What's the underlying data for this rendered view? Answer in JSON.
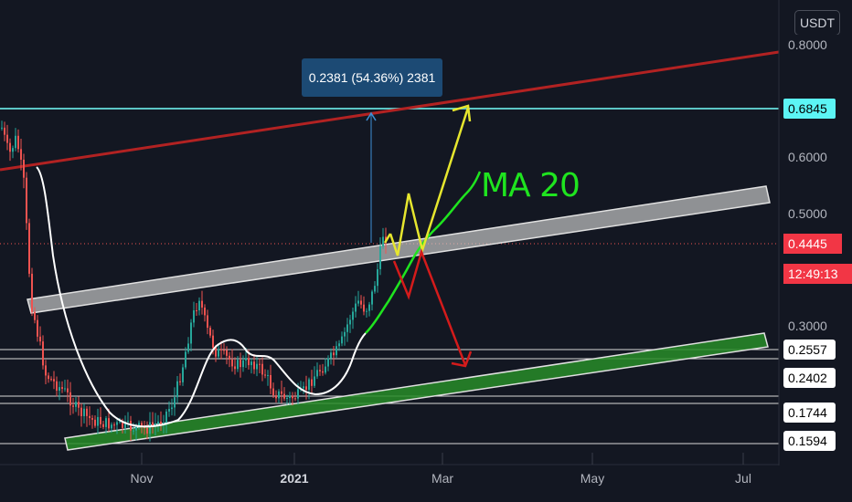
{
  "quote_currency": "USDT",
  "price_axis": {
    "labels": [
      {
        "text": "0.8000",
        "price": 0.8
      },
      {
        "text": "0.6000",
        "price": 0.6
      },
      {
        "text": "0.5000",
        "price": 0.5
      },
      {
        "text": "0.3000",
        "price": 0.3
      }
    ],
    "level_labels": [
      {
        "text": "0.6845",
        "price": 0.6845,
        "style": "teal"
      },
      {
        "text": "0.2557",
        "price": 0.2557,
        "style": "box"
      },
      {
        "text": "0.2402",
        "price": 0.2402,
        "style": "box"
      },
      {
        "text": "0.1744",
        "price": 0.1744,
        "style": "box"
      },
      {
        "text": "0.1594",
        "price": 0.1594,
        "style": "box"
      }
    ],
    "last_price": "0.4445",
    "countdown": "12:49:13"
  },
  "time_axis": [
    {
      "text": "Nov",
      "bold": false
    },
    {
      "text": "2021",
      "bold": true
    },
    {
      "text": "Mar",
      "bold": false
    },
    {
      "text": "May",
      "bold": false
    },
    {
      "text": "Jul",
      "bold": false
    }
  ],
  "measure_label": "0.2381 (54.36%) 2381",
  "indicator_label": "MA 20",
  "colors": {
    "background": "#131722",
    "up": "#26a69a",
    "down": "#ef5350",
    "resistance_line": "#b22222",
    "target_line": "#5cc6c6",
    "channel_grey": "#c8c8c8",
    "channel_green": "#2e9e2e",
    "ma_white": "#ffffff",
    "ma_green": "#1fe41f",
    "arrow_yellow": "#e6e62e",
    "arrow_red": "#d41b1b"
  }
}
